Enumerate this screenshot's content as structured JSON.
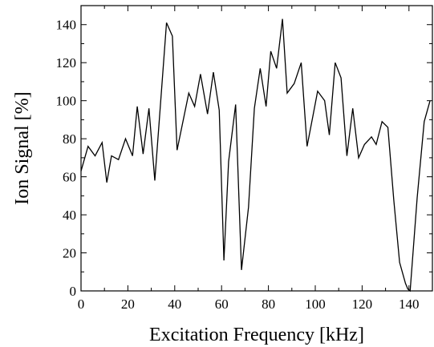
{
  "chart_data": {
    "type": "line",
    "xlabel": "Excitation Frequency [kHz]",
    "ylabel": "Ion Signal [%]",
    "xlim": [
      0,
      150
    ],
    "ylim": [
      0,
      150
    ],
    "xticks": [
      0,
      20,
      40,
      60,
      80,
      100,
      120,
      140
    ],
    "yticks": [
      0,
      20,
      40,
      60,
      80,
      100,
      120,
      140
    ],
    "xtick_labels": [
      "0",
      "20",
      "40",
      "60",
      "80",
      "100",
      "120",
      "140"
    ],
    "ytick_labels": [
      "0",
      "20",
      "40",
      "60",
      "80",
      "100",
      "120",
      "140"
    ],
    "minor_ticks": true,
    "grid": false,
    "series": [
      {
        "color": "#000000",
        "x": [
          0,
          3,
          6,
          9,
          11,
          13,
          16,
          19,
          22,
          24,
          26.5,
          29,
          31.5,
          36.5,
          39,
          41,
          46,
          48.5,
          51,
          54,
          56.5,
          59,
          61,
          63,
          66,
          68.5,
          71.5,
          74,
          76.5,
          79,
          81,
          83.5,
          86,
          88,
          91,
          94,
          96.5,
          99,
          101,
          104,
          106,
          108.5,
          111,
          113.5,
          116,
          118.5,
          121,
          124,
          126,
          128.5,
          131,
          133.5,
          136,
          138.5,
          139.5,
          140.5,
          143.5,
          146.5,
          149
        ],
        "y": [
          63,
          76,
          71,
          78,
          57,
          71,
          69,
          80,
          71,
          97,
          72,
          96,
          58,
          141,
          134,
          74,
          104,
          97,
          114,
          93,
          115,
          95,
          16,
          68,
          98,
          11,
          44,
          96,
          117,
          97,
          126,
          117,
          143,
          104,
          109,
          120,
          76,
          92,
          105,
          100,
          82,
          120,
          112,
          71,
          96,
          70,
          77,
          81,
          77,
          89,
          86,
          48,
          15,
          4,
          1,
          0,
          49,
          89,
          100
        ]
      }
    ]
  }
}
